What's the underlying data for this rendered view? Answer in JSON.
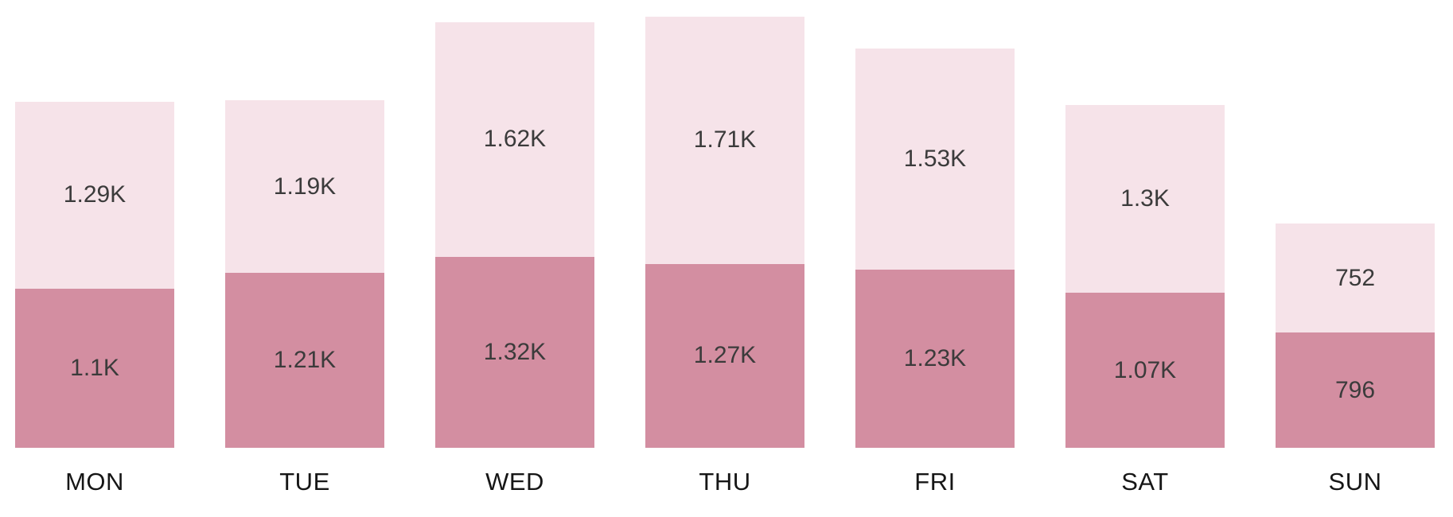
{
  "chart_data": {
    "type": "bar",
    "stacked": true,
    "title": "",
    "xlabel": "",
    "ylabel": "",
    "legend": "none",
    "grid": false,
    "background": "#ffffff",
    "ylim": [
      0,
      2980
    ],
    "categories": [
      "MON",
      "TUE",
      "WED",
      "THU",
      "FRI",
      "SAT",
      "SUN"
    ],
    "series": [
      {
        "name": "bottom-segment",
        "color": "#d38ea1",
        "values": [
          1100,
          1210,
          1320,
          1270,
          1230,
          1070,
          796
        ],
        "labels": [
          "1.1K",
          "1.21K",
          "1.32K",
          "1.27K",
          "1.23K",
          "1.07K",
          "796"
        ]
      },
      {
        "name": "top-segment",
        "color": "#f6e3e9",
        "values": [
          1290,
          1190,
          1620,
          1710,
          1530,
          1300,
          752
        ],
        "labels": [
          "1.29K",
          "1.19K",
          "1.62K",
          "1.71K",
          "1.53K",
          "1.3K",
          "752"
        ]
      }
    ],
    "value_label_color": "#3b3b3b",
    "axis_label_color": "#161616"
  }
}
